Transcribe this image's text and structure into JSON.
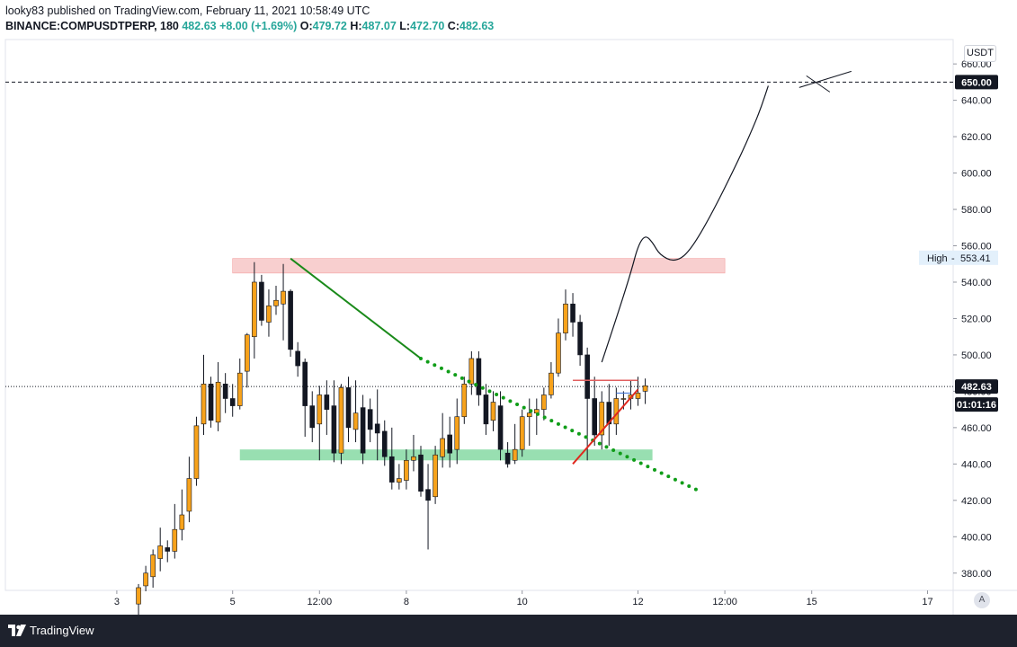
{
  "header": {
    "publisher_line": "looky83 published on TradingView.com, February 11, 2021 10:58:49 UTC",
    "symbol": "BINANCE:COMPUSDTPERP, 180",
    "last": "482.63",
    "change": "+8.00 (+1.69%)",
    "open_label": "O:",
    "open": "479.72",
    "high_label": "H:",
    "high": "487.07",
    "low_label": "L:",
    "low": "472.70",
    "close_label": "C:",
    "close": "482.63"
  },
  "currency": "USDT",
  "auto_label": "A",
  "footer": {
    "brand": "TradingView"
  },
  "colors": {
    "up_body": "#f7a21b",
    "down_body": "#131722",
    "green_line": "#1a8a1a",
    "dots": "#0f9d18",
    "red_line": "#e0281e",
    "support_zone": "#86d9a3",
    "resistance_zone": "#f8cfcf"
  },
  "chart_data": {
    "type": "candlestick",
    "ylim": [
      370,
      666
    ],
    "x_slots": [
      0,
      164
    ],
    "y_ticks": [
      380,
      400,
      420,
      440,
      460,
      480,
      500,
      520,
      540,
      560,
      580,
      600,
      620,
      640,
      660
    ],
    "y_tick_labels": [
      "380.00",
      "400.00",
      "420.00",
      "440.00",
      "460.00",
      "480.00",
      "500.00",
      "520.00",
      "540.00",
      "560.00",
      "580.00",
      "600.00",
      "620.00",
      "640.00",
      "660.00"
    ],
    "x_ticks": [
      {
        "label": "3",
        "slot": -2
      },
      {
        "label": "5",
        "slot": 14
      },
      {
        "label": "12:00",
        "slot": 26
      },
      {
        "label": "8",
        "slot": 38
      },
      {
        "label": "10",
        "slot": 54
      },
      {
        "label": "12",
        "slot": 70
      },
      {
        "label": "12:00",
        "slot": 82
      },
      {
        "label": "15",
        "slot": 94
      },
      {
        "label": "17",
        "slot": 110
      }
    ],
    "candles": [
      [
        1,
        363,
        372,
        356,
        374
      ],
      [
        2,
        373,
        380,
        370,
        384
      ],
      [
        3,
        378,
        390,
        372,
        393
      ],
      [
        4,
        388,
        395,
        381,
        405
      ],
      [
        5,
        394,
        392,
        386,
        398
      ],
      [
        6,
        392,
        404,
        388,
        418
      ],
      [
        7,
        404,
        412,
        398,
        426
      ],
      [
        8,
        414,
        432,
        408,
        444
      ],
      [
        9,
        432,
        461,
        428,
        466
      ],
      [
        10,
        462,
        484,
        456,
        500
      ],
      [
        11,
        484,
        464,
        460,
        488
      ],
      [
        12,
        463,
        485,
        458,
        496
      ],
      [
        13,
        484,
        476,
        468,
        490
      ],
      [
        14,
        476,
        472,
        466,
        484
      ],
      [
        15,
        472,
        490,
        470,
        498
      ],
      [
        16,
        491,
        511,
        482,
        512
      ],
      [
        17,
        510,
        540,
        498,
        551
      ],
      [
        18,
        540,
        519,
        516,
        544
      ],
      [
        19,
        518,
        527,
        510,
        536
      ],
      [
        20,
        527,
        530,
        522,
        538
      ],
      [
        21,
        528,
        535,
        508,
        550
      ],
      [
        22,
        535,
        503,
        499,
        536
      ],
      [
        23,
        502,
        494,
        488,
        507
      ],
      [
        24,
        496,
        472,
        455,
        498
      ],
      [
        25,
        472,
        460,
        452,
        480
      ],
      [
        26,
        462,
        478,
        442,
        483
      ],
      [
        27,
        478,
        470,
        456,
        486
      ],
      [
        28,
        472,
        446,
        441,
        486
      ],
      [
        29,
        446,
        482,
        440,
        484
      ],
      [
        30,
        482,
        460,
        452,
        488
      ],
      [
        31,
        459,
        468,
        452,
        486
      ],
      [
        32,
        471,
        446,
        440,
        478
      ],
      [
        33,
        470,
        459,
        452,
        476
      ],
      [
        34,
        462,
        457,
        442,
        481
      ],
      [
        35,
        458,
        444,
        439,
        464
      ],
      [
        36,
        444,
        430,
        426,
        460
      ],
      [
        37,
        430,
        432,
        426,
        440
      ],
      [
        38,
        431,
        442,
        426,
        448
      ],
      [
        39,
        442,
        444,
        436,
        456
      ],
      [
        40,
        445,
        425,
        422,
        450
      ],
      [
        41,
        426,
        420,
        393,
        440
      ],
      [
        42,
        422,
        445,
        418,
        450
      ],
      [
        43,
        444,
        454,
        438,
        468
      ],
      [
        44,
        456,
        446,
        438,
        466
      ],
      [
        45,
        448,
        466,
        440,
        476
      ],
      [
        46,
        466,
        484,
        462,
        488
      ],
      [
        47,
        484,
        498,
        478,
        502
      ],
      [
        48,
        498,
        478,
        472,
        502
      ],
      [
        49,
        478,
        462,
        456,
        484
      ],
      [
        50,
        464,
        474,
        458,
        480
      ],
      [
        51,
        472,
        448,
        442,
        480
      ],
      [
        52,
        446,
        440,
        438,
        452
      ],
      [
        53,
        442,
        448,
        440,
        462
      ],
      [
        54,
        448,
        466,
        444,
        470
      ],
      [
        55,
        466,
        468,
        450,
        476
      ],
      [
        56,
        468,
        470,
        456,
        476
      ],
      [
        57,
        470,
        478,
        464,
        482
      ],
      [
        58,
        478,
        490,
        476,
        496
      ],
      [
        59,
        490,
        512,
        488,
        520
      ],
      [
        60,
        512,
        528,
        508,
        536
      ],
      [
        61,
        528,
        518,
        510,
        534
      ],
      [
        62,
        518,
        500,
        494,
        522
      ],
      [
        63,
        500,
        476,
        442,
        504
      ],
      [
        64,
        476,
        456,
        450,
        488
      ],
      [
        65,
        456,
        474,
        448,
        480
      ],
      [
        66,
        474,
        462,
        450,
        484
      ],
      [
        67,
        462,
        476,
        456,
        482
      ],
      [
        68,
        476,
        476,
        470,
        480
      ],
      [
        69,
        476,
        478,
        470,
        486
      ],
      [
        70,
        476,
        479,
        472,
        488
      ],
      [
        71,
        480,
        483,
        473,
        487
      ]
    ],
    "last_price": 482.63,
    "last_price_label": "482.63",
    "countdown": "01:01:16",
    "target_level": 650,
    "target_label": "650.00",
    "high_marker_label": "High",
    "high_marker_value": "553.41",
    "drawings": {
      "resistance_zone": {
        "slot0": 14,
        "slot1": 82,
        "p_top": 553,
        "p_bot": 545
      },
      "support_zone": {
        "slot0": 15,
        "slot1": 72,
        "p_top": 448,
        "p_bot": 442
      },
      "downtrend": {
        "slot0": 22,
        "p0": 553,
        "slot1": 40,
        "p1": 498
      },
      "dotted_projection": {
        "slot0": 40,
        "p0": 498,
        "slot1": 78,
        "p1": 426,
        "count": 40
      },
      "rising_line": {
        "slot0": 61,
        "p0": 440,
        "slot1": 70,
        "p1": 481
      },
      "horizontal_level": {
        "slot0": 61,
        "slot1": 70,
        "p": 486
      },
      "flag_line": {
        "slot0": 67,
        "slot1": 69,
        "p": 479
      },
      "path_points": [
        [
          65,
          496
        ],
        [
          67,
          520
        ],
        [
          69,
          545
        ],
        [
          70,
          560
        ],
        [
          71,
          566
        ],
        [
          72,
          562
        ],
        [
          73,
          555
        ],
        [
          75,
          551
        ],
        [
          77,
          556
        ],
        [
          80,
          576
        ],
        [
          84,
          608
        ],
        [
          86,
          626
        ],
        [
          87,
          636
        ],
        [
          88,
          648
        ]
      ],
      "target_cross": {
        "slot": 96,
        "p": 650
      }
    }
  }
}
